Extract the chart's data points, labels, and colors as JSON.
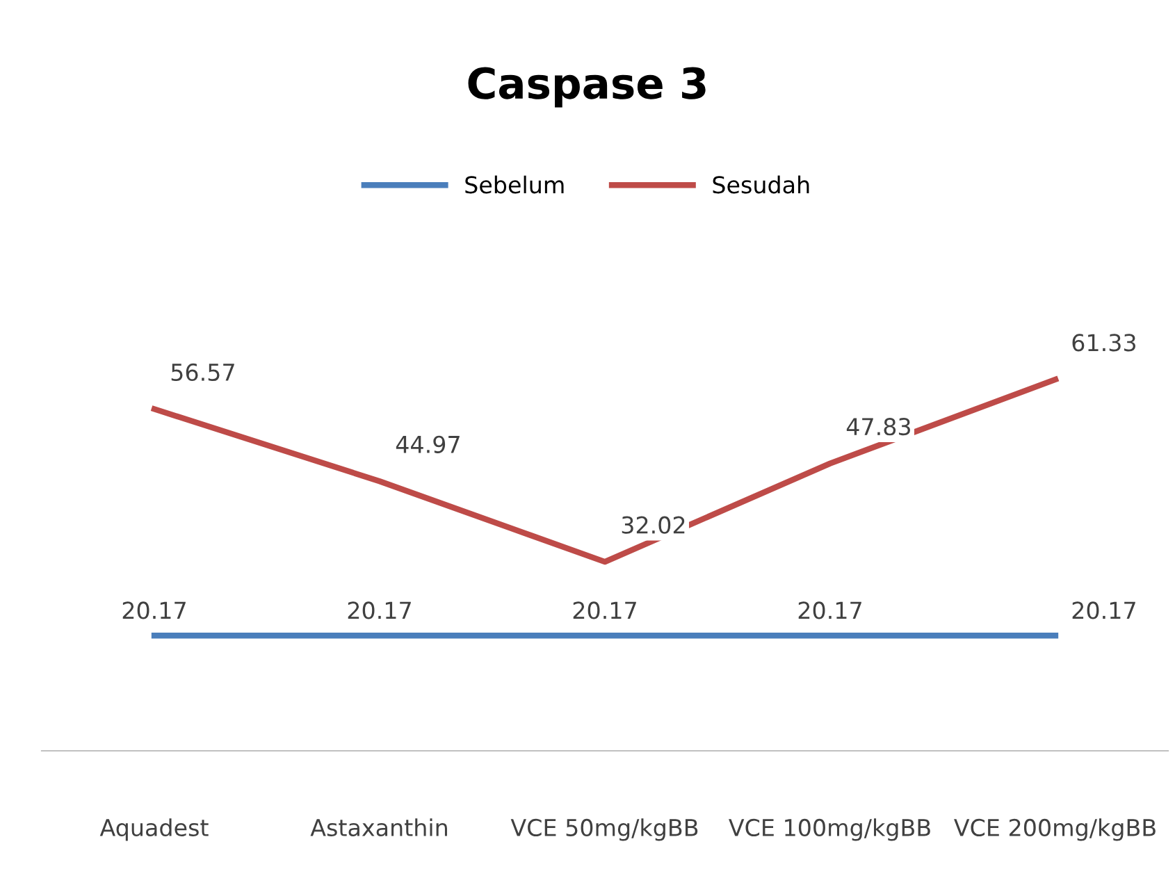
{
  "chart_data": {
    "type": "line",
    "title": "Caspase 3",
    "categories": [
      "Aquadest",
      "Astaxanthin",
      "VCE 50mg/kgBB",
      "VCE 100mg/kgBB",
      "VCE 200mg/kgBB"
    ],
    "series": [
      {
        "name": "Sebelum",
        "color": "#4a7ebb",
        "values": [
          20.17,
          20.17,
          20.17,
          20.17,
          20.17
        ]
      },
      {
        "name": "Sesudah",
        "color": "#be4b48",
        "values": [
          56.57,
          44.97,
          32.02,
          47.83,
          61.33
        ]
      }
    ],
    "tick_labels": "x",
    "data_labels": true,
    "legend": "top",
    "grid": false,
    "marker": "none",
    "line_style": "solid"
  }
}
